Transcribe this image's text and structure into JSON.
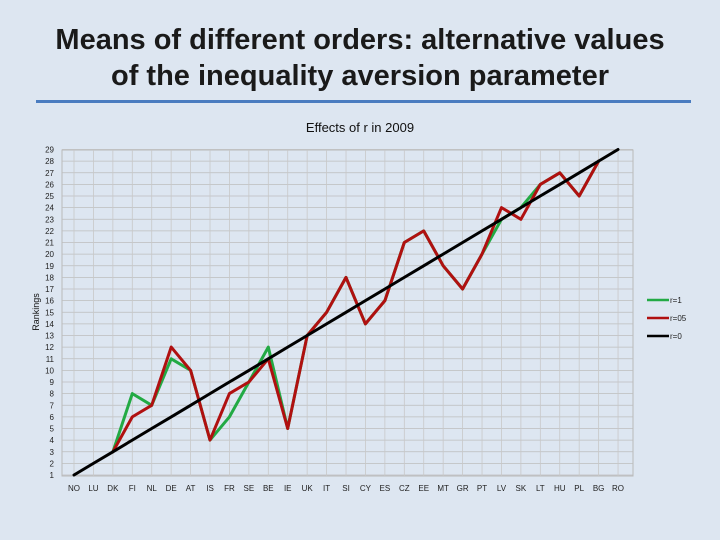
{
  "slide": {
    "title_line1": "Means of different orders: alternative values",
    "title_line2": "of the inequality aversion parameter"
  },
  "chart_data": {
    "type": "line",
    "title": "Effects of r in 2009",
    "ylabel": "Rankings",
    "xlabel": "",
    "categories": [
      "NO",
      "LU",
      "DK",
      "FI",
      "NL",
      "DE",
      "AT",
      "IS",
      "FR",
      "SE",
      "BE",
      "IE",
      "UK",
      "IT",
      "SI",
      "CY",
      "ES",
      "CZ",
      "EE",
      "MT",
      "GR",
      "PT",
      "LV",
      "SK",
      "LT",
      "HU",
      "PL",
      "BG",
      "RO"
    ],
    "ylim": [
      1,
      29
    ],
    "yticks": [
      1,
      2,
      3,
      4,
      5,
      6,
      7,
      8,
      9,
      10,
      11,
      12,
      13,
      14,
      15,
      16,
      17,
      18,
      19,
      20,
      21,
      22,
      23,
      24,
      25,
      26,
      27,
      28,
      29
    ],
    "grid": true,
    "legend_position": "right",
    "series": [
      {
        "name": "r=1",
        "color": "#22aa44",
        "values": [
          null,
          null,
          3,
          8,
          7,
          11,
          10,
          4,
          6,
          9,
          12,
          5,
          13,
          15,
          18,
          14,
          16,
          21,
          22,
          19,
          17,
          20,
          23,
          24,
          26,
          27,
          25,
          28,
          null
        ]
      },
      {
        "name": "r=05",
        "color": "#b01010",
        "values": [
          null,
          null,
          3,
          6,
          7,
          12,
          10,
          4,
          8,
          9,
          11,
          5,
          13,
          15,
          18,
          14,
          16,
          21,
          22,
          19,
          17,
          20,
          24,
          23,
          26,
          27,
          25,
          28,
          null
        ]
      },
      {
        "name": "r=0",
        "color": "#000000",
        "values": [
          1,
          2,
          3,
          4,
          5,
          6,
          7,
          8,
          9,
          10,
          11,
          12,
          13,
          14,
          15,
          16,
          17,
          18,
          19,
          20,
          21,
          22,
          23,
          24,
          25,
          26,
          27,
          28,
          29
        ]
      }
    ]
  }
}
